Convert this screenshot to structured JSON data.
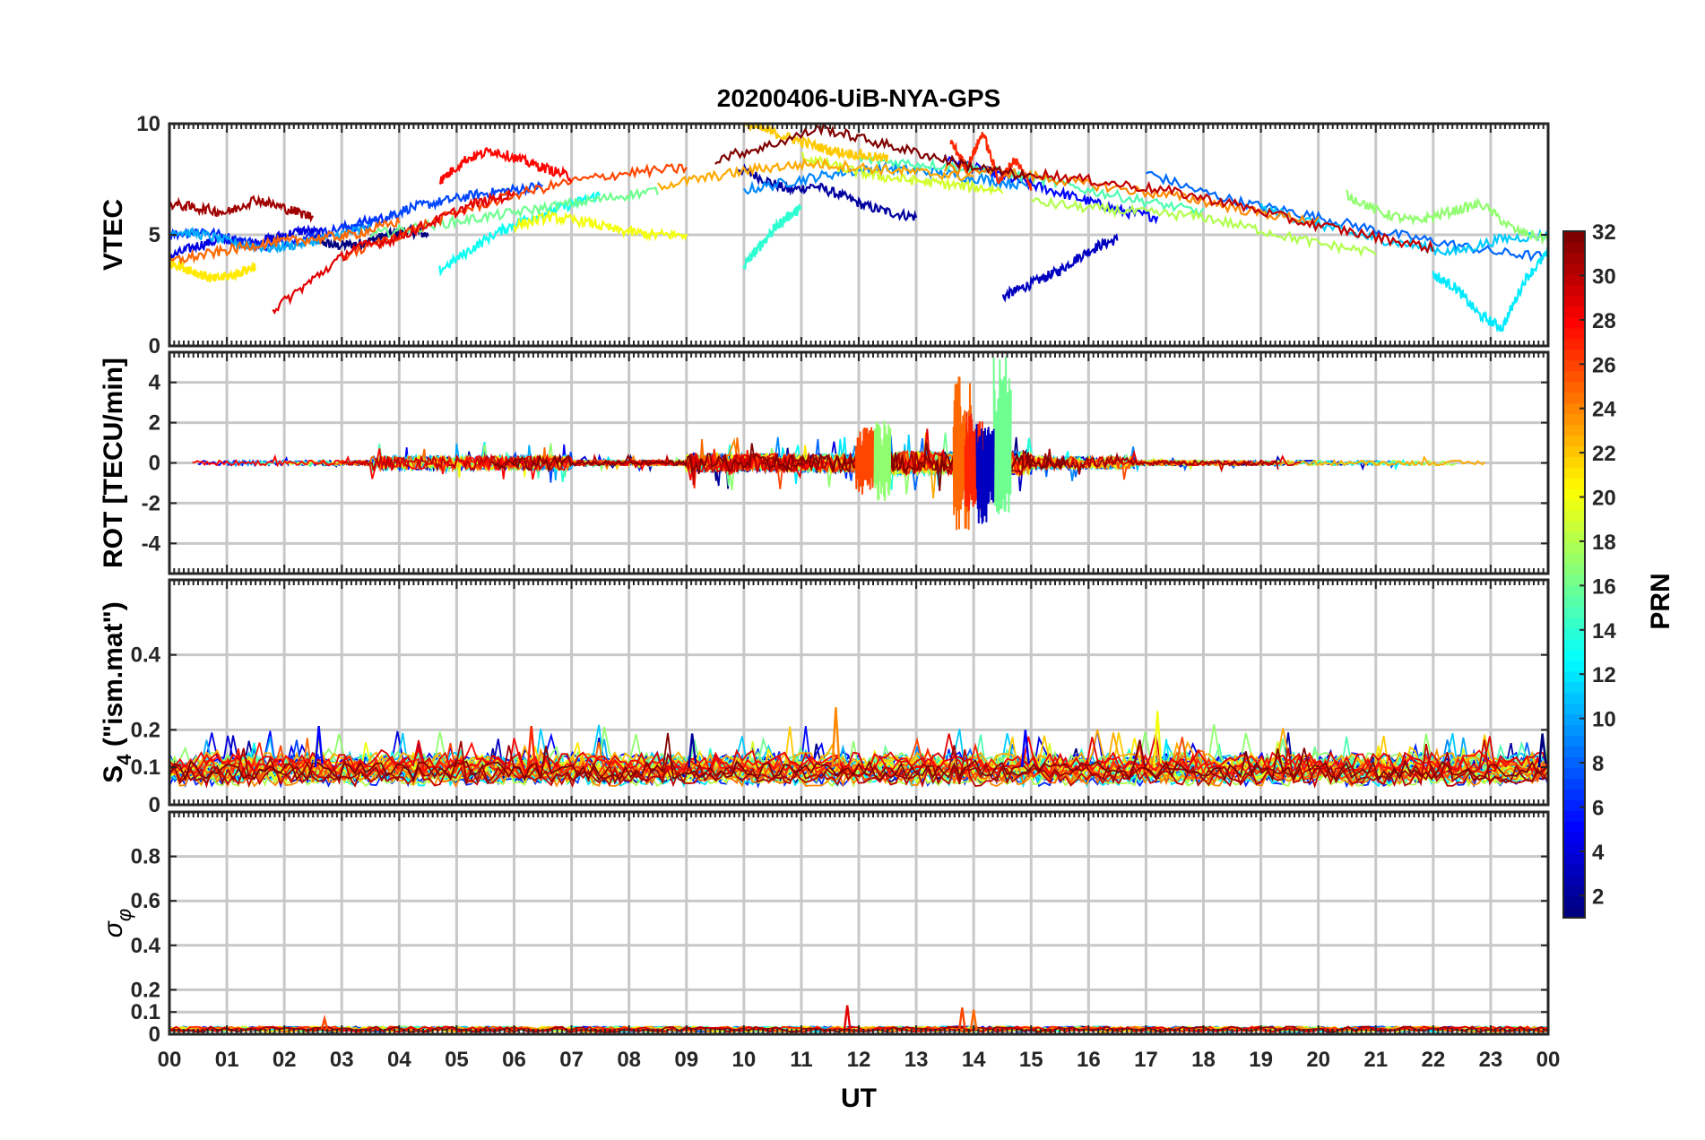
{
  "chart_data": {
    "type": "line",
    "title": "20200406-UiB-NYA-GPS",
    "xlabel": "UT",
    "x_tick_labels": [
      "00",
      "01",
      "02",
      "03",
      "04",
      "05",
      "06",
      "07",
      "08",
      "09",
      "10",
      "11",
      "12",
      "13",
      "14",
      "15",
      "16",
      "17",
      "18",
      "19",
      "20",
      "21",
      "22",
      "23",
      "00"
    ],
    "xlim_hours": [
      0,
      24
    ],
    "grid": true,
    "colorbar": {
      "label": "PRN",
      "range": [
        1,
        32
      ],
      "ticks": [
        "2",
        "4",
        "6",
        "8",
        "10",
        "12",
        "14",
        "16",
        "18",
        "20",
        "22",
        "24",
        "26",
        "28",
        "30",
        "32"
      ],
      "colormap": "jet",
      "position": "right"
    },
    "panels": [
      {
        "name": "vtec",
        "ylabel": "VTEC",
        "ylim": [
          0,
          10
        ],
        "y_ticks": [
          "0",
          "5",
          "10"
        ],
        "tracks": [
          {
            "prn": 1,
            "start": 2.5,
            "end": 4.5,
            "points": [
              4.8,
              4.5,
              4.6,
              4.9,
              5.2,
              5.0
            ]
          },
          {
            "prn": 2,
            "start": 9.9,
            "end": 13.0,
            "points": [
              8.0,
              7.5,
              7.0,
              7.2,
              6.8,
              6.3,
              6.0,
              5.8
            ]
          },
          {
            "prn": 3,
            "start": 14.5,
            "end": 16.5,
            "points": [
              2.2,
              2.6,
              3.0,
              3.4,
              4.0,
              4.5,
              4.8
            ]
          },
          {
            "prn": 4,
            "start": 0.0,
            "end": 2.8,
            "points": [
              4.0,
              4.5,
              4.8,
              4.6,
              4.9,
              5.2,
              5.0
            ]
          },
          {
            "prn": 5,
            "start": 13.5,
            "end": 17.2,
            "points": [
              8.5,
              8.0,
              7.6,
              7.2,
              6.8,
              6.4,
              6.0,
              5.8
            ]
          },
          {
            "prn": 6,
            "start": 0.0,
            "end": 4.0,
            "points": [
              5.0,
              5.2,
              4.8,
              4.5,
              4.8,
              5.2,
              5.6,
              5.9
            ]
          },
          {
            "prn": 7,
            "start": 3.0,
            "end": 6.5,
            "points": [
              5.2,
              5.6,
              6.2,
              6.5,
              6.8,
              7.0,
              7.2
            ]
          },
          {
            "prn": 8,
            "start": 17.0,
            "end": 24.0,
            "points": [
              7.8,
              7.0,
              6.4,
              6.0,
              5.5,
              5.0,
              4.6,
              4.2,
              4.0
            ]
          },
          {
            "prn": 9,
            "start": 10.0,
            "end": 15.0,
            "points": [
              7.0,
              7.4,
              7.8,
              8.0,
              7.8,
              7.5,
              7.2
            ]
          },
          {
            "prn": 10,
            "start": 0.0,
            "end": 3.5,
            "points": [
              5.2,
              5.0,
              4.6,
              4.4,
              4.6,
              5.0,
              5.3
            ]
          },
          {
            "prn": 11,
            "start": 19.0,
            "end": 24.0,
            "points": [
              6.2,
              5.6,
              5.0,
              4.6,
              4.2,
              4.8,
              5.0
            ]
          },
          {
            "prn": 12,
            "start": 22.0,
            "end": 24.0,
            "points": [
              3.2,
              2.6,
              1.4,
              0.8,
              3.0,
              4.2
            ]
          },
          {
            "prn": 13,
            "start": 4.7,
            "end": 7.5,
            "points": [
              3.4,
              4.2,
              5.0,
              5.6,
              6.0,
              6.4,
              6.8
            ]
          },
          {
            "prn": 14,
            "start": 10.0,
            "end": 11.0,
            "points": [
              3.6,
              4.4,
              5.2,
              5.8,
              6.2
            ]
          },
          {
            "prn": 15,
            "start": 12.0,
            "end": 18.0,
            "points": [
              8.4,
              8.2,
              8.0,
              7.6,
              7.0,
              6.5,
              6.0
            ]
          },
          {
            "prn": 16,
            "start": 3.5,
            "end": 8.5,
            "points": [
              5.0,
              5.4,
              5.8,
              6.2,
              6.6,
              7.0
            ]
          },
          {
            "prn": 17,
            "start": 20.5,
            "end": 24.0,
            "points": [
              6.8,
              6.0,
              5.6,
              6.0,
              6.4,
              5.2,
              4.8
            ]
          },
          {
            "prn": 18,
            "start": 15.0,
            "end": 21.0,
            "points": [
              6.5,
              6.2,
              6.0,
              5.8,
              5.2,
              4.6,
              4.2
            ]
          },
          {
            "prn": 19,
            "start": 11.0,
            "end": 14.5,
            "points": [
              8.5,
              8.0,
              7.6,
              7.4,
              7.2,
              7.0
            ]
          },
          {
            "prn": 20,
            "start": 6.0,
            "end": 9.0,
            "points": [
              5.4,
              5.8,
              5.6,
              5.2,
              5.0,
              5.0
            ]
          },
          {
            "prn": 21,
            "start": 0.0,
            "end": 1.5,
            "points": [
              3.8,
              3.4,
              3.0,
              3.2,
              3.6
            ]
          },
          {
            "prn": 22,
            "start": 10.0,
            "end": 12.5,
            "points": [
              10.0,
              9.6,
              9.2,
              8.8,
              8.6,
              8.4
            ]
          },
          {
            "prn": 23,
            "start": 8.5,
            "end": 14.0,
            "points": [
              7.2,
              7.6,
              8.0,
              8.2,
              8.0,
              7.8,
              7.6
            ]
          },
          {
            "prn": 24,
            "start": 13.5,
            "end": 20.0,
            "points": [
              8.0,
              7.8,
              7.4,
              7.0,
              6.6,
              6.0,
              5.6
            ]
          },
          {
            "prn": 25,
            "start": 0.0,
            "end": 4.0,
            "points": [
              3.8,
              4.2,
              4.6,
              4.8,
              5.0,
              5.6
            ]
          },
          {
            "prn": 26,
            "start": 3.0,
            "end": 9.0,
            "points": [
              4.0,
              5.0,
              6.0,
              6.8,
              7.4,
              7.8,
              8.0
            ]
          },
          {
            "prn": 27,
            "start": 13.6,
            "end": 15.0,
            "points": [
              9.2,
              8.0,
              9.6,
              7.4,
              8.4,
              7.2
            ]
          },
          {
            "prn": 28,
            "start": 4.7,
            "end": 7.0,
            "points": [
              7.4,
              8.4,
              8.8,
              8.4,
              8.0,
              7.6
            ]
          },
          {
            "prn": 29,
            "start": 1.8,
            "end": 6.0,
            "points": [
              1.6,
              3.0,
              4.4,
              4.8,
              5.6,
              6.4,
              6.8
            ]
          },
          {
            "prn": 30,
            "start": 15.0,
            "end": 22.0,
            "points": [
              7.8,
              7.4,
              7.0,
              6.4,
              5.6,
              5.0,
              4.4
            ]
          },
          {
            "prn": 31,
            "start": 0.0,
            "end": 2.5,
            "points": [
              6.4,
              6.2,
              6.0,
              6.6,
              6.2,
              5.8
            ]
          },
          {
            "prn": 32,
            "start": 9.5,
            "end": 15.0,
            "points": [
              8.4,
              9.0,
              9.8,
              9.2,
              8.6,
              8.0,
              7.6
            ]
          }
        ]
      },
      {
        "name": "rot",
        "ylabel": "ROT [TECU/min]",
        "ylim": [
          -5.5,
          5.5
        ],
        "y_ticks": [
          "-4",
          "-2",
          "0",
          "2",
          "4"
        ],
        "bursts": [
          {
            "hour": 12.4,
            "min": -1.9,
            "max": 2.1,
            "prn": 17
          },
          {
            "hour": 12.1,
            "min": -1.6,
            "max": 1.8,
            "prn": 26
          },
          {
            "hour": 13.8,
            "min": -3.4,
            "max": 4.4,
            "prn": 25
          },
          {
            "hour": 14.0,
            "min": -2.4,
            "max": 2.6,
            "prn": 27
          },
          {
            "hour": 14.5,
            "min": -2.6,
            "max": 5.4,
            "prn": 16
          },
          {
            "hour": 14.2,
            "min": -3.4,
            "max": 2.0,
            "prn": 3
          }
        ]
      },
      {
        "name": "s4",
        "ylabel": "S4 (\"ism.mat\")",
        "ylabel_main": "S",
        "ylabel_sub": "4",
        "ylabel_rest": " (\"ism.mat\")",
        "ylim": [
          0,
          0.6
        ],
        "y_ticks": [
          "0",
          "0.1",
          "0.2",
          "0.4"
        ],
        "peaks": [
          {
            "hour": 2.6,
            "value": 0.21,
            "prn": 5
          },
          {
            "hour": 6.3,
            "value": 0.21,
            "prn": 27
          },
          {
            "hour": 9.1,
            "value": 0.19,
            "prn": 2
          },
          {
            "hour": 11.6,
            "value": 0.26,
            "prn": 24
          },
          {
            "hour": 14.9,
            "value": 0.2,
            "prn": 5
          },
          {
            "hour": 17.2,
            "value": 0.25,
            "prn": 20
          },
          {
            "hour": 23.9,
            "value": 0.19,
            "prn": 1
          }
        ]
      },
      {
        "name": "sigma-phi",
        "ylabel": "σ φ",
        "ylabel_main": "σ",
        "ylabel_sub": "φ",
        "ylim": [
          0,
          1
        ],
        "y_ticks": [
          "0",
          "0.1",
          "0.2",
          "0.4",
          "0.6",
          "0.8"
        ],
        "peaks": [
          {
            "hour": 11.8,
            "value": 0.13,
            "prn": 29
          },
          {
            "hour": 13.8,
            "value": 0.12,
            "prn": 26
          },
          {
            "hour": 14.0,
            "value": 0.11,
            "prn": 25
          },
          {
            "hour": 2.7,
            "value": 0.07,
            "prn": 26
          }
        ]
      }
    ]
  }
}
